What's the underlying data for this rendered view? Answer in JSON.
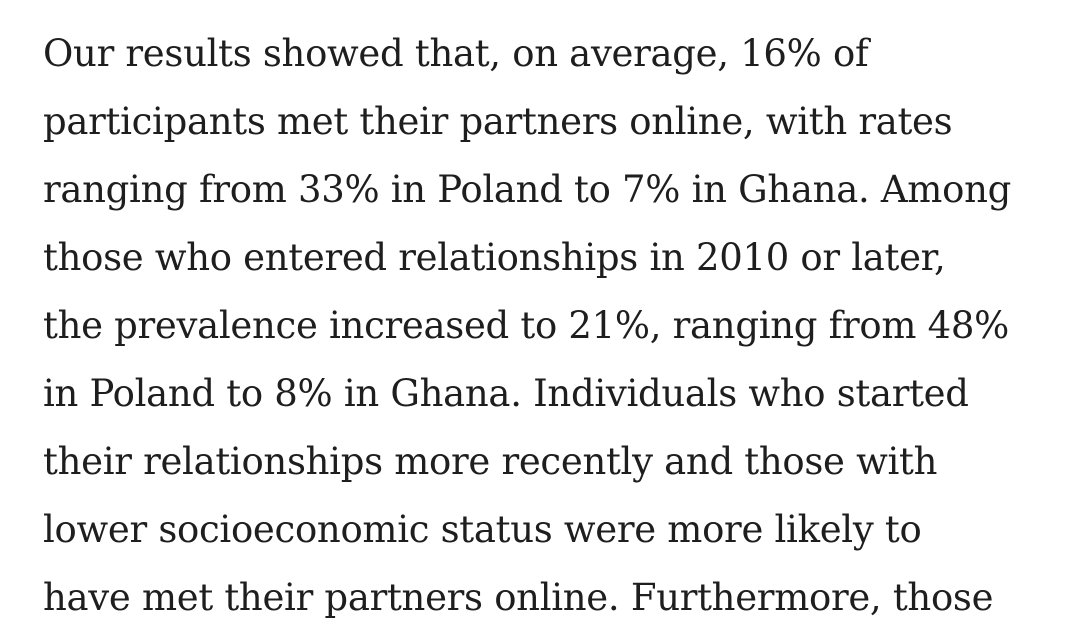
{
  "article": {
    "lines": [
      "Our results showed that, on average, 16% of",
      "participants met their partners online, with rates",
      "ranging from 33% in Poland to 7% in Ghana. Among",
      "those who entered relationships in 2010 or later,",
      "the prevalence increased to 21%, ranging from 48%",
      "in Poland to 8% in Ghana. Individuals who started",
      "their relationships more recently and those with",
      "lower socioeconomic status were more likely to",
      "have met their partners online. Furthermore, those"
    ]
  }
}
